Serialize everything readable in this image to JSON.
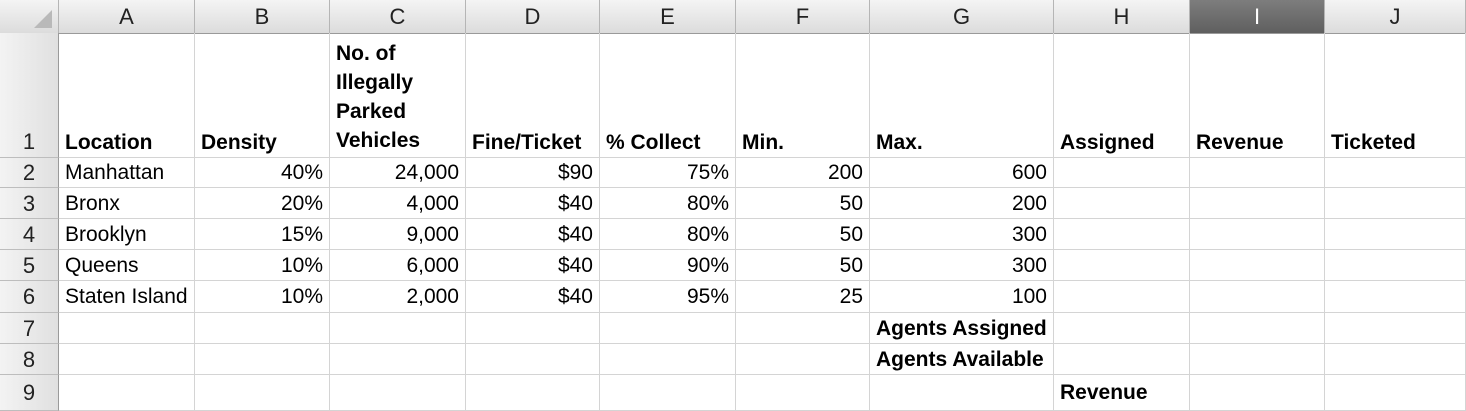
{
  "columns": [
    "A",
    "B",
    "C",
    "D",
    "E",
    "F",
    "G",
    "H",
    "I",
    "J"
  ],
  "selected_column": "I",
  "rows": [
    "1",
    "2",
    "3",
    "4",
    "5",
    "6",
    "7",
    "8",
    "9"
  ],
  "headers": {
    "location": "Location",
    "density": "Density",
    "vehicles": "No. of Illegally Parked Vehicles",
    "fine": "Fine/Ticket",
    "collect": "% Collect",
    "min": "Min.",
    "max": "Max.",
    "assigned": "Assigned",
    "revenue": "Revenue",
    "ticketed": "Ticketed"
  },
  "data": [
    {
      "location": "Manhattan",
      "density": "40%",
      "vehicles": "24,000",
      "fine": "$90",
      "collect": "75%",
      "min": "200",
      "max": "600"
    },
    {
      "location": "Bronx",
      "density": "20%",
      "vehicles": "4,000",
      "fine": "$40",
      "collect": "80%",
      "min": "50",
      "max": "200"
    },
    {
      "location": "Brooklyn",
      "density": "15%",
      "vehicles": "9,000",
      "fine": "$40",
      "collect": "80%",
      "min": "50",
      "max": "300"
    },
    {
      "location": "Queens",
      "density": "10%",
      "vehicles": "6,000",
      "fine": "$40",
      "collect": "90%",
      "min": "50",
      "max": "300"
    },
    {
      "location": "Staten Island",
      "density": "10%",
      "vehicles": "2,000",
      "fine": "$40",
      "collect": "95%",
      "min": "25",
      "max": "100"
    }
  ],
  "labels": {
    "agents_assigned": "Agents Assigned",
    "agents_available": "Agents Available",
    "revenue": "Revenue"
  }
}
